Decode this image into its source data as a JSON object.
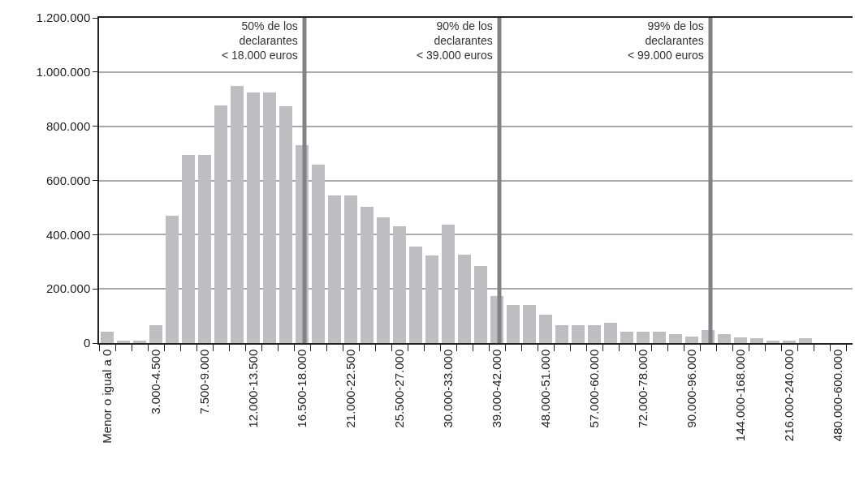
{
  "chart_data": {
    "type": "bar",
    "categories": [
      "Menor o igual a 0",
      null,
      null,
      "3.000-4.500",
      null,
      null,
      "7.500-9.000",
      null,
      null,
      "12.000-13.500",
      null,
      null,
      "16.500-18.000",
      null,
      null,
      "21.000-22.500",
      null,
      null,
      "25.500-27.000",
      null,
      null,
      "30.000-33.000",
      null,
      null,
      "39.000-42.000",
      null,
      null,
      "48.000-51.000",
      null,
      null,
      "57.000-60.000",
      null,
      null,
      "72.000-78.000",
      null,
      null,
      "90.000-96.000",
      null,
      null,
      "144.000-168.000",
      null,
      null,
      "216.000-240.000",
      null,
      null,
      "480.000-600.000"
    ],
    "values": [
      42000,
      8000,
      8000,
      66000,
      471000,
      693000,
      693000,
      878000,
      950000,
      926000,
      926000,
      875000,
      731000,
      657000,
      546000,
      546000,
      504000,
      465000,
      430000,
      355000,
      322000,
      436000,
      325000,
      283000,
      175000,
      140000,
      140000,
      104000,
      65000,
      65000,
      65000,
      74000,
      41000,
      41000,
      41000,
      32000,
      23000,
      47000,
      32000,
      20000,
      17000,
      8000,
      8000,
      17000,
      0,
      0
    ],
    "color": "#bdbec2",
    "ylim": [
      0,
      1200000
    ],
    "yticks": [
      {
        "value": 0,
        "label": "0"
      },
      {
        "value": 200000,
        "label": "200.000"
      },
      {
        "value": 400000,
        "label": "400.000"
      },
      {
        "value": 600000,
        "label": "600.000"
      },
      {
        "value": 800000,
        "label": "800.000"
      },
      {
        "value": 1000000,
        "label": "1.000.000"
      },
      {
        "value": 1200000,
        "label": "1.200.000"
      }
    ],
    "grid": "y",
    "annotations": [
      "50% de los\ndeclarantes\n< 18.000 euros",
      "90% de los\ndeclarantes\n< 39.000 euros",
      "99% de los\ndeclarantes\n< 99.000 euros"
    ]
  }
}
